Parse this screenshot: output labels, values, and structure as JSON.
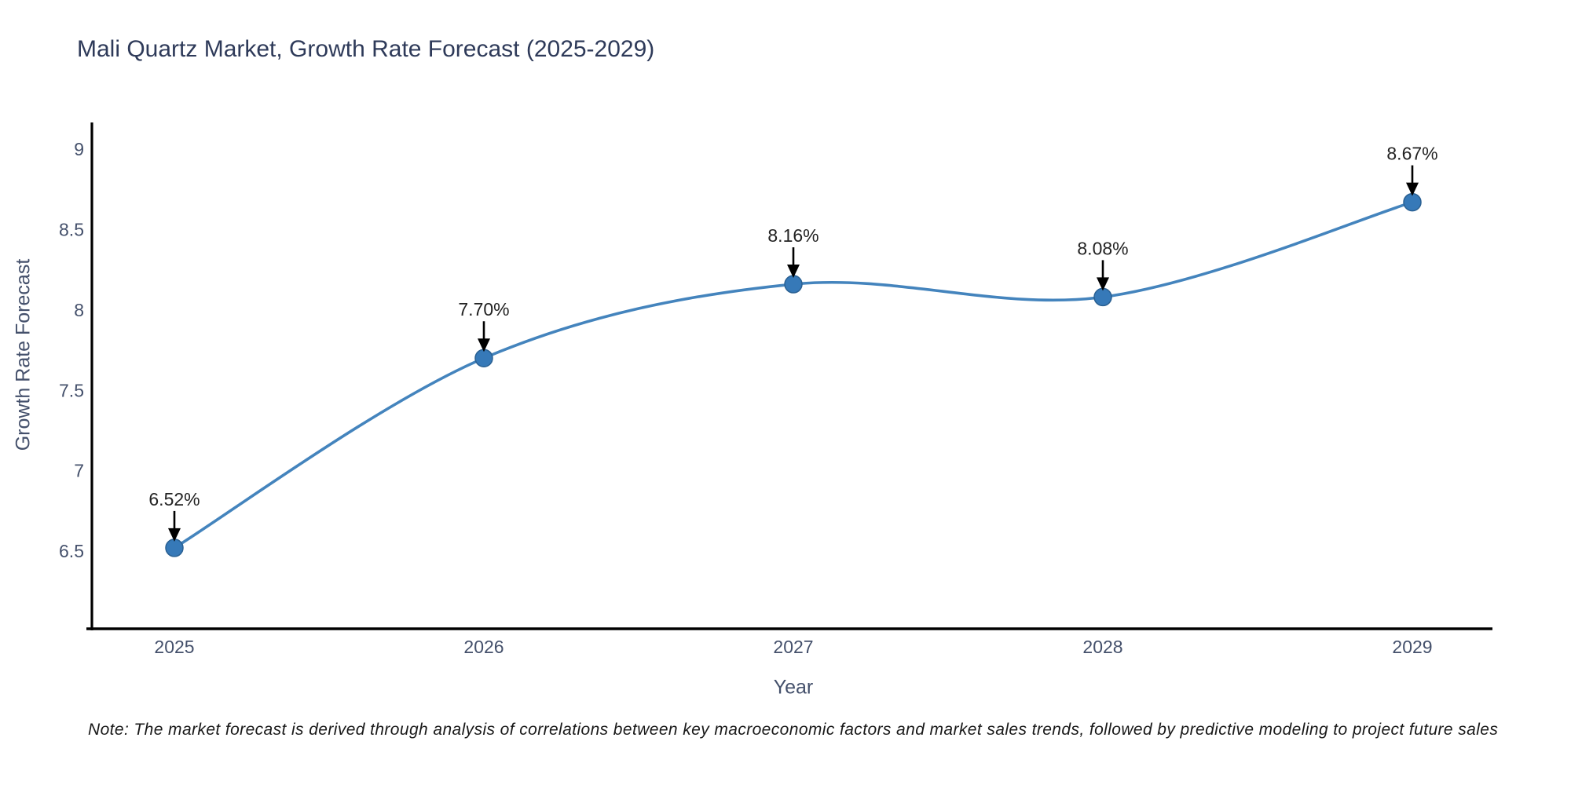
{
  "title": "Mali Quartz Market, Growth Rate Forecast (2025-2029)",
  "note": "Note: The market forecast is derived through analysis of correlations between key macroeconomic factors and market sales trends, followed by predictive modeling to project future sales",
  "chart_data": {
    "type": "line",
    "title": "Mali Quartz Market, Growth Rate Forecast (2025-2029)",
    "xlabel": "Year",
    "ylabel": "Growth Rate Forecast",
    "categories": [
      "2025",
      "2026",
      "2027",
      "2028",
      "2029"
    ],
    "series": [
      {
        "name": "Growth Rate Forecast",
        "values": [
          6.52,
          7.7,
          8.16,
          8.08,
          8.67
        ]
      }
    ],
    "point_labels": [
      "6.52%",
      "7.70%",
      "8.16%",
      "8.08%",
      "8.67%"
    ],
    "yticks": [
      6.5,
      7,
      7.5,
      8,
      8.5,
      9
    ],
    "ytick_labels": [
      "6.5",
      "7",
      "7.5",
      "8",
      "8.5",
      "9"
    ],
    "ylim": [
      6.02,
      9.17
    ],
    "grid": false,
    "legend_position": "none",
    "curve": "spline",
    "annotation_style": "arrow-down",
    "colors": {
      "line": "#4484bd",
      "marker_fill": "#3679b8",
      "marker_edge": "#2a6092",
      "axis_spine": "#000000",
      "tick_label": "#44506b",
      "annotation_text": "#222222",
      "annotation_arrow": "#000000",
      "title": "#2e3a59",
      "background": "#ffffff"
    }
  }
}
